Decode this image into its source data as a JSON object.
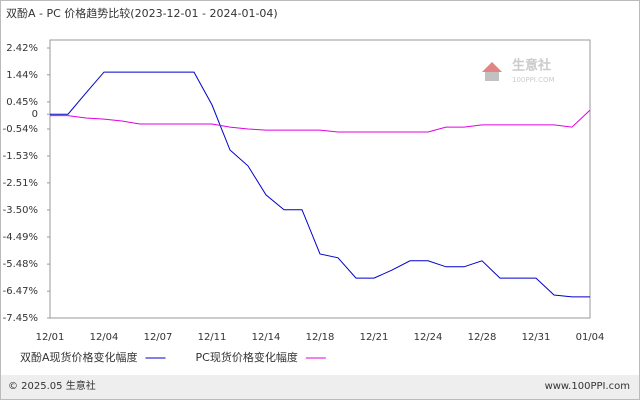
{
  "chart_data": {
    "type": "line",
    "title": "双酚A - PC 价格趋势比较(2023-12-01 - 2024-01-04)",
    "categories": [
      "12/01",
      null,
      null,
      "12/04",
      null,
      null,
      "12/07",
      null,
      null,
      "12/11",
      null,
      null,
      "12/14",
      null,
      null,
      "12/18",
      null,
      null,
      "12/21",
      null,
      null,
      "12/24",
      null,
      null,
      "12/28",
      null,
      null,
      "12/31",
      null,
      null,
      "01/04"
    ],
    "series": [
      {
        "name": "双酚A现货价格变化幅度",
        "color": "#0000cc",
        "values": [
          0,
          0,
          0.78,
          1.54,
          1.54,
          1.54,
          1.54,
          1.54,
          1.54,
          0.34,
          -1.31,
          -1.89,
          -2.95,
          -3.49,
          -3.49,
          -5.11,
          -5.25,
          -5.99,
          -5.99,
          -5.7,
          -5.36,
          -5.36,
          -5.58,
          -5.58,
          -5.36,
          -5.99,
          -5.99,
          -5.99,
          -6.61,
          -6.68,
          -6.68
        ]
      },
      {
        "name": "PC现货价格变化幅度",
        "color": "#e000e0",
        "values": [
          -0.05,
          -0.05,
          -0.14,
          -0.18,
          -0.25,
          -0.36,
          -0.36,
          -0.36,
          -0.36,
          -0.36,
          -0.47,
          -0.54,
          -0.58,
          -0.58,
          -0.58,
          -0.58,
          -0.65,
          -0.65,
          -0.65,
          -0.65,
          -0.65,
          -0.65,
          -0.47,
          -0.47,
          -0.39,
          -0.39,
          -0.39,
          -0.39,
          -0.39,
          -0.47,
          0.15
        ]
      }
    ],
    "ylim": [
      -7.45,
      2.42
    ],
    "yticks": [
      {
        "value": 2.42,
        "label": "2.42%"
      },
      {
        "value": 1.44,
        "label": "1.44%"
      },
      {
        "value": 0.45,
        "label": "0.45%"
      },
      0,
      {
        "value": -0.54,
        "label": "-0.54%"
      },
      {
        "value": -1.53,
        "label": "-1.53%"
      },
      {
        "value": -2.51,
        "label": "-2.51%"
      },
      {
        "value": -3.5,
        "label": "-3.50%"
      },
      {
        "value": -4.49,
        "label": "-4.49%"
      },
      {
        "value": -5.48,
        "label": "-5.48%"
      },
      {
        "value": -6.47,
        "label": "-6.47%"
      },
      {
        "value": -7.45,
        "label": "-7.45%"
      }
    ],
    "grid": false
  },
  "watermark": {
    "name": "生意社",
    "url": "100PPI.COM"
  },
  "footer": {
    "copyright": "© 2025.05 生意社",
    "site": "www.100PPI.com"
  }
}
